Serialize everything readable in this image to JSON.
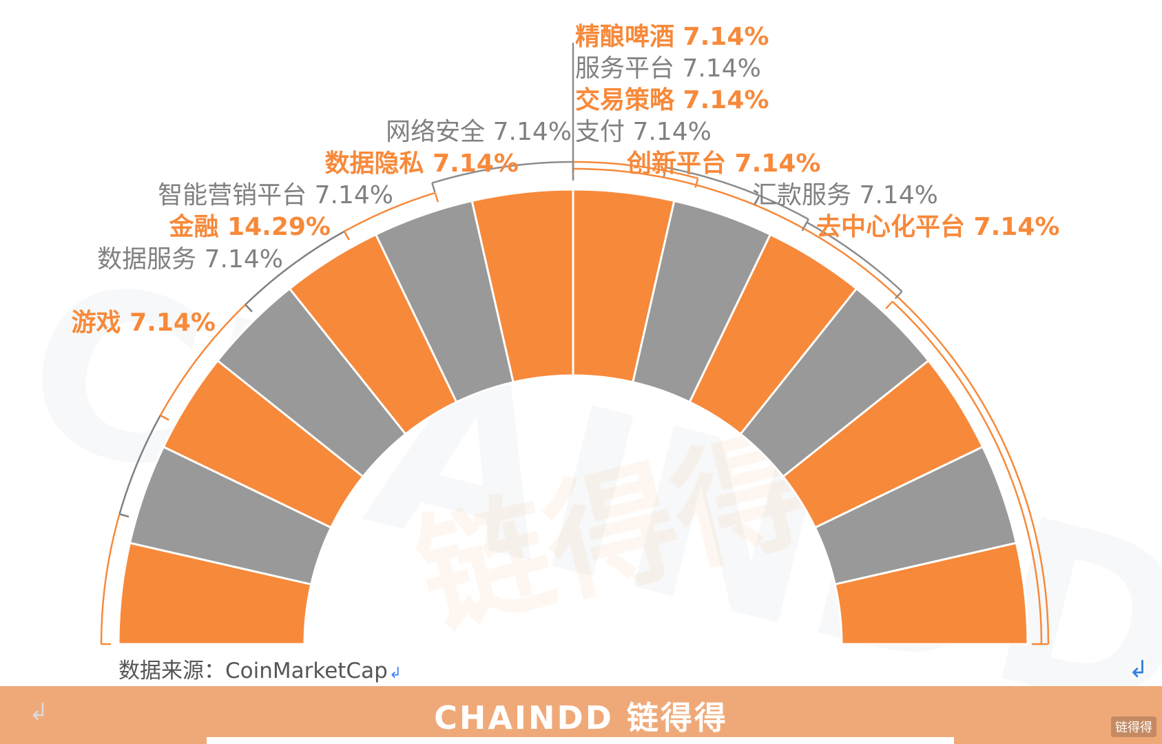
{
  "chart_data": {
    "type": "pie",
    "variant": "semicircle-donut",
    "title": "",
    "slices": [
      {
        "label": "游戏",
        "value": 7.14,
        "value_text": "7.14%",
        "label_color": "#f7893a"
      },
      {
        "label": "数据服务",
        "value": 7.14,
        "value_text": "7.14%",
        "label_color": "#808080"
      },
      {
        "label": "金融",
        "value": 14.29,
        "value_text": "14.29%",
        "label_color": "#f7893a"
      },
      {
        "label": "智能营销平台",
        "value": 7.14,
        "value_text": "7.14%",
        "label_color": "#808080"
      },
      {
        "label": "数据隐私",
        "value": 7.14,
        "value_text": "7.14%",
        "label_color": "#f7893a"
      },
      {
        "label": "网络安全",
        "value": 7.14,
        "value_text": "7.14%",
        "label_color": "#808080"
      },
      {
        "label": "精酿啤酒",
        "value": 7.14,
        "value_text": "7.14%",
        "label_color": "#f7893a"
      },
      {
        "label": "服务平台",
        "value": 7.14,
        "value_text": "7.14%",
        "label_color": "#808080"
      },
      {
        "label": "交易策略",
        "value": 7.14,
        "value_text": "7.14%",
        "label_color": "#f7893a"
      },
      {
        "label": "支付",
        "value": 7.14,
        "value_text": "7.14%",
        "label_color": "#808080"
      },
      {
        "label": "创新平台",
        "value": 7.14,
        "value_text": "7.14%",
        "label_color": "#f7893a"
      },
      {
        "label": "汇款服务",
        "value": 7.14,
        "value_text": "7.14%",
        "label_color": "#808080"
      },
      {
        "label": "去中心化平台",
        "value": 7.14,
        "value_text": "7.14%",
        "label_color": "#f7893a"
      }
    ],
    "colors": {
      "orange": "#f7893a",
      "gray": "#999999",
      "label_gray": "#808080",
      "bracket_gray": "#8c8c8c"
    },
    "ring_segments_per_side": 7,
    "legend": "none"
  },
  "source_text": "数据来源：CoinMarketCap",
  "return_mark": "↲",
  "footer": {
    "logo_text": "CHAINDD 链得得",
    "corner_text": "链得得",
    "background": "#efa978"
  },
  "watermark": {
    "latin": "CHAINDD",
    "cjk": "链得得"
  }
}
